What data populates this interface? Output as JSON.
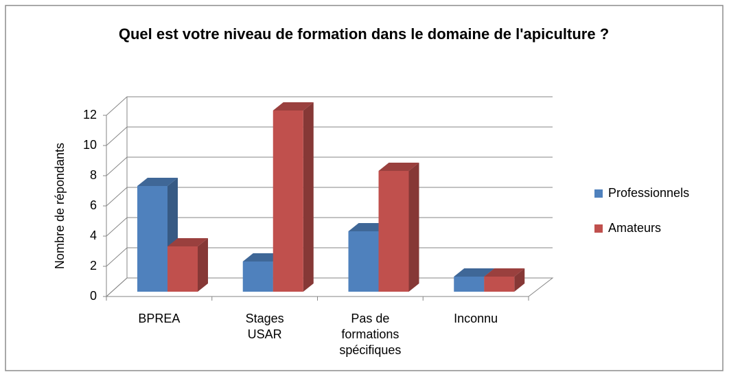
{
  "chart_data": {
    "type": "bar3d",
    "title": "Quel est votre niveau de formation dans le domaine de l'apiculture ?",
    "y_label": "Nombre de répondants",
    "categories": [
      "BPREA",
      "Stages USAR",
      "Pas de formations spécifiques",
      "Inconnu"
    ],
    "series": [
      {
        "name": "Professionnels",
        "color": "#4f81bd",
        "values": [
          7,
          2,
          4,
          1
        ]
      },
      {
        "name": "Amateurs",
        "color": "#c0504d",
        "values": [
          3,
          12,
          8,
          1
        ]
      }
    ],
    "ylim": [
      0,
      12
    ],
    "yticks": [
      0,
      2,
      4,
      6,
      8,
      10,
      12
    ],
    "grid": true,
    "legend": "right"
  }
}
